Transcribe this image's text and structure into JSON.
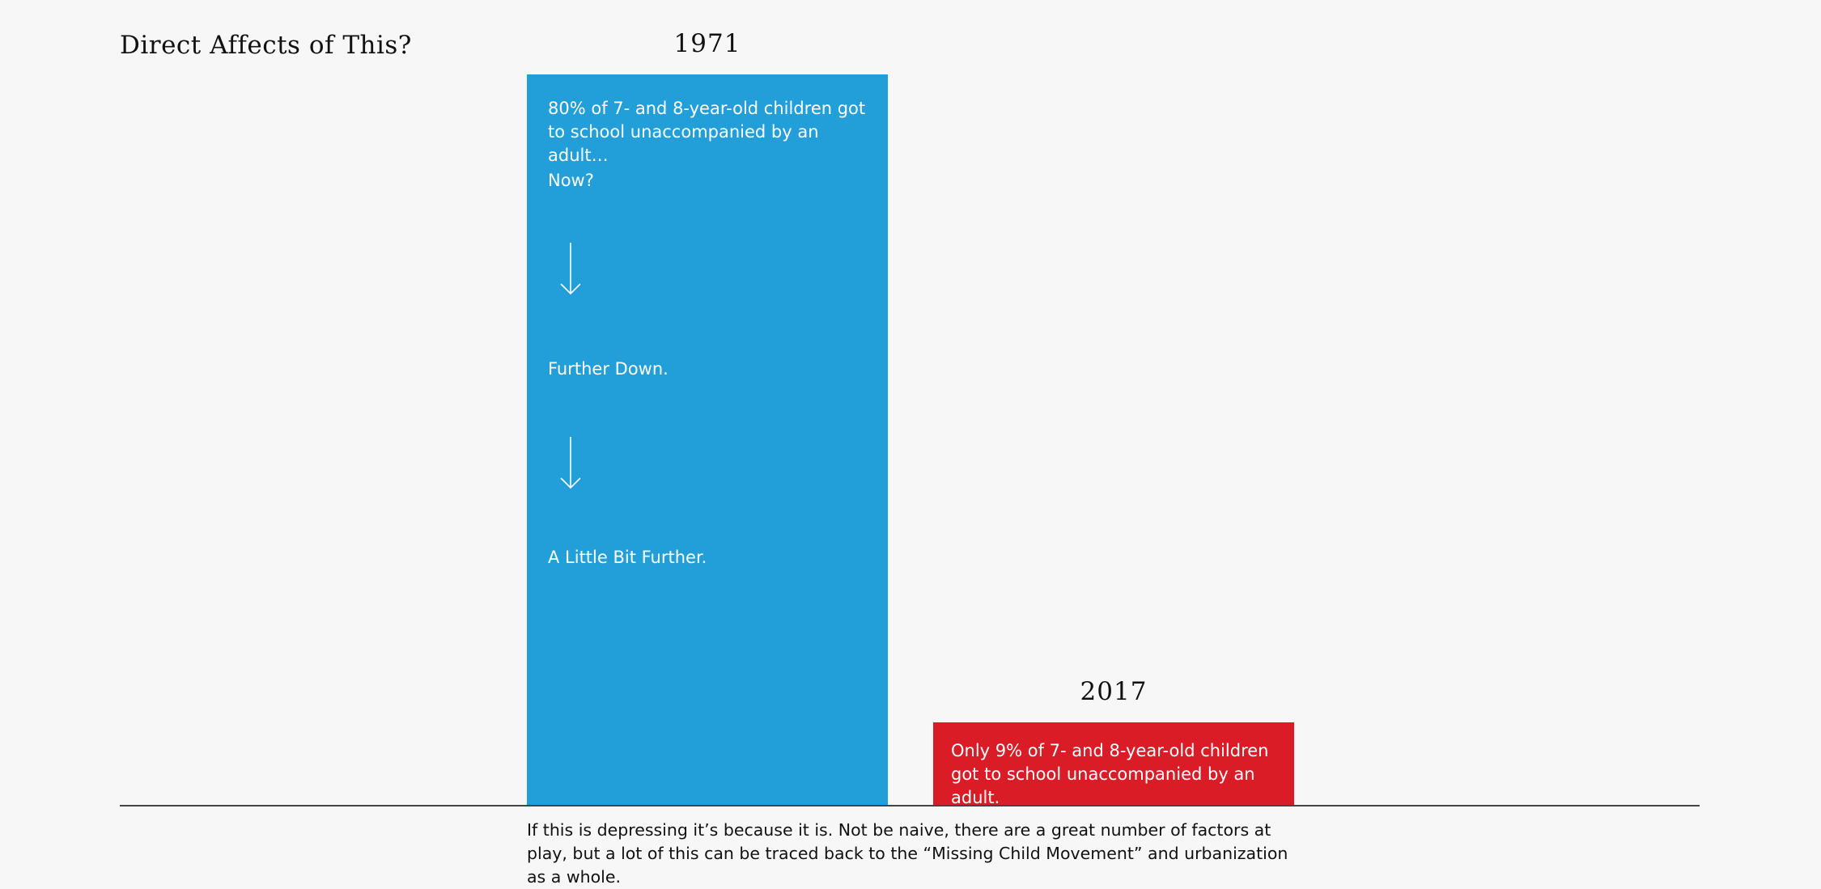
{
  "page": {
    "title": "Direct Affects of This?",
    "footnote": "If this is depressing it’s because it is. Not be naive, there are a great number of factors at play, but a lot of this can be traced back to the “Missing Child Movement” and urbanization as a whole."
  },
  "bar_1971": {
    "label": "1971",
    "text_main": "80% of 7- and 8-year-old children got to school unaccompanied by an adult…",
    "text_now": "Now?",
    "text_further": "Further Down.",
    "text_little": "A Little Bit Further."
  },
  "bar_2017": {
    "label": "2017",
    "text": "Only 9% of 7- and 8-year-old children got to school unaccompanied by an adult."
  },
  "colors": {
    "bar_1971": "#229fd8",
    "bar_2017": "#da1c26",
    "background": "#f7f7f7"
  },
  "chart_data": {
    "type": "bar",
    "categories": [
      "1971",
      "2017"
    ],
    "values": [
      80,
      9
    ],
    "ylim": [
      0,
      80
    ],
    "title": "Direct Affects of This?",
    "xlabel": "",
    "ylabel": "",
    "unit": "%",
    "grid": false
  }
}
